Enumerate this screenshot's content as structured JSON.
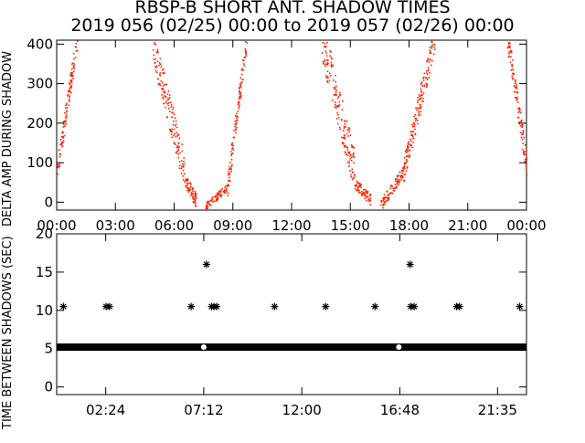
{
  "chart_data": [
    {
      "type": "scatter",
      "title": "RBSP-B SHORT ANT. SHADOW TIMES",
      "subtitle": "2019 056 (02/25) 00:00 to 2019 057 (02/26) 00:00",
      "ylabel": "DELTA AMP DURING SHADOW",
      "ylim": [
        -20,
        410
      ],
      "xlim": [
        0,
        24
      ],
      "yticks": [
        "0",
        "100",
        "200",
        "300",
        "400"
      ],
      "xticks": [
        "00:00",
        "03:00",
        "06:00",
        "09:00",
        "12:00",
        "15:00",
        "18:00",
        "21:00",
        "00:00"
      ],
      "grid": false,
      "point_color": "#ff2200",
      "segments": [
        {
          "x0": 0.0,
          "x1": 1.05,
          "y0": 80,
          "y1": 420,
          "n": 120,
          "spread": 28
        },
        {
          "x0": 4.9,
          "x1": 6.5,
          "y0": 400,
          "y1": 80,
          "n": 150,
          "spread": 45
        },
        {
          "x0": 6.5,
          "x1": 7.1,
          "y0": 60,
          "y1": 5,
          "n": 70,
          "spread": 18
        },
        {
          "x0": 7.6,
          "x1": 8.7,
          "y0": -8,
          "y1": 40,
          "n": 70,
          "spread": 10
        },
        {
          "x0": 8.7,
          "x1": 9.7,
          "y0": 40,
          "y1": 420,
          "n": 120,
          "spread": 30
        },
        {
          "x0": 13.5,
          "x1": 15.2,
          "y0": 420,
          "y1": 80,
          "n": 170,
          "spread": 55
        },
        {
          "x0": 15.2,
          "x1": 16.0,
          "y0": 50,
          "y1": 10,
          "n": 70,
          "spread": 15
        },
        {
          "x0": 16.5,
          "x1": 17.7,
          "y0": -8,
          "y1": 80,
          "n": 90,
          "spread": 14
        },
        {
          "x0": 17.7,
          "x1": 19.3,
          "y0": 80,
          "y1": 420,
          "n": 170,
          "spread": 35
        },
        {
          "x0": 23.0,
          "x1": 24.0,
          "y0": 420,
          "y1": 90,
          "n": 110,
          "spread": 30
        }
      ]
    },
    {
      "type": "scatter",
      "ylabel": "TIME BETWEEN SHADOWS (SEC)",
      "ylim": [
        -1,
        20
      ],
      "xlim": [
        0,
        1380
      ],
      "yticks": [
        "0",
        "5",
        "10",
        "15",
        "20"
      ],
      "xticks": [
        "02:24",
        "07:12",
        "12:00",
        "16:48",
        "21:35"
      ],
      "xtick_minutes": [
        144,
        432,
        720,
        1008,
        1295
      ],
      "grid": false,
      "baseline_value": 5.2,
      "baseline_gaps_minutes": [
        432,
        1005
      ],
      "points_minutes_value": [
        [
          20,
          10.5
        ],
        [
          145,
          10.5
        ],
        [
          155,
          10.5
        ],
        [
          395,
          10.5
        ],
        [
          440,
          16
        ],
        [
          455,
          10.5
        ],
        [
          462,
          10.5
        ],
        [
          470,
          10.5
        ],
        [
          640,
          10.5
        ],
        [
          790,
          10.5
        ],
        [
          935,
          10.5
        ],
        [
          1038,
          16
        ],
        [
          1040,
          10.5
        ],
        [
          1050,
          10.5
        ],
        [
          1175,
          10.5
        ],
        [
          1183,
          10.5
        ],
        [
          1360,
          10.5
        ],
        [
          1290,
          5.2
        ],
        [
          1040,
          5.2
        ]
      ]
    }
  ]
}
